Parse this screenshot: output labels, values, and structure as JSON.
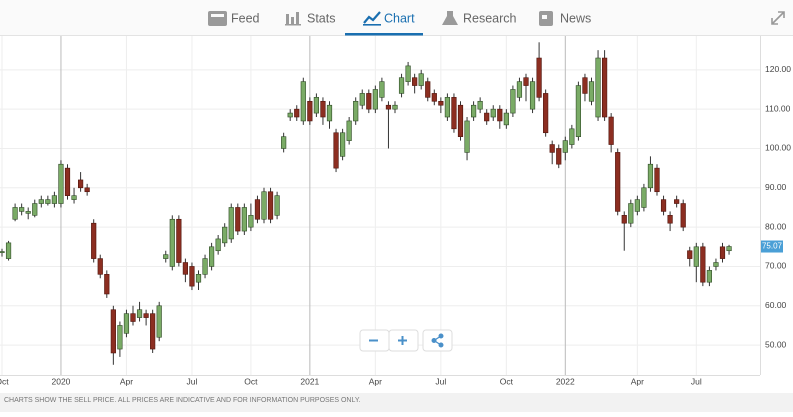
{
  "nav": {
    "tabs": [
      "Feed",
      "Stats",
      "Chart",
      "Research",
      "News"
    ],
    "active": 2
  },
  "chart_data": {
    "type": "candlestick",
    "note": "CHARTS SHOW THE SELL PRICE. ALL PRICES ARE INDICATIVE AND FOR INFORMATION PURPOSES ONLY.",
    "categories": [
      "Oct",
      null,
      null,
      null,
      null,
      null,
      null,
      null,
      null,
      "2020",
      null,
      null,
      null,
      null,
      null,
      null,
      null,
      null,
      null,
      "Apr",
      null,
      null,
      null,
      null,
      null,
      null,
      null,
      null,
      null,
      "Jul",
      null,
      null,
      null,
      null,
      null,
      null,
      null,
      null,
      "Oct",
      null,
      null,
      null,
      null,
      null,
      null,
      null,
      null,
      "2021",
      null,
      null,
      null,
      null,
      null,
      null,
      null,
      null,
      null,
      "Apr",
      null,
      null,
      null,
      null,
      null,
      null,
      null,
      null,
      null,
      "Jul",
      null,
      null,
      null,
      null,
      null,
      null,
      null,
      null,
      null,
      "Oct",
      null,
      null,
      null,
      null,
      null,
      null,
      null,
      null,
      "2022",
      null,
      null,
      null,
      null,
      null,
      null,
      null,
      null,
      null,
      null,
      "Apr",
      null,
      null,
      null,
      null,
      null,
      null,
      null,
      null,
      "Jul",
      null,
      null,
      null,
      null,
      null
    ],
    "open": [
      73.5,
      72,
      82,
      84,
      83.5,
      83,
      86,
      86,
      86,
      86,
      95,
      87,
      92,
      90,
      81,
      72,
      68,
      59,
      49,
      53,
      58,
      57,
      58,
      58,
      52,
      72,
      70,
      82,
      71,
      70,
      66,
      68,
      70,
      74,
      76,
      77,
      85,
      79,
      80,
      87,
      82,
      89,
      83,
      100,
      108,
      110,
      107,
      112,
      109,
      112,
      107,
      104,
      98,
      102,
      107,
      111,
      114,
      110,
      113,
      111,
      110,
      114,
      117,
      118,
      116,
      117,
      114,
      112,
      108,
      113,
      111,
      99,
      108,
      110,
      109,
      108,
      110,
      106,
      109,
      113,
      118,
      110,
      123,
      114,
      101,
      100,
      99,
      101,
      103,
      118,
      112,
      108,
      123,
      108,
      99,
      83,
      81,
      84,
      85,
      90,
      95,
      87,
      83,
      87,
      86,
      74,
      70,
      75,
      66,
      70,
      75,
      74
    ],
    "high": [
      74.5,
      76.5,
      86,
      86,
      85,
      87,
      88,
      88,
      89,
      97,
      96,
      90,
      94,
      91,
      82,
      73,
      69,
      60,
      56,
      59,
      60,
      61,
      59,
      59,
      61,
      74,
      83,
      83,
      72,
      71,
      69,
      73,
      76,
      78,
      81,
      86,
      86,
      86,
      86,
      88,
      90,
      90,
      89,
      104,
      110,
      111,
      118,
      113,
      114,
      113,
      112,
      105,
      105,
      108,
      113,
      115,
      115,
      116,
      118,
      112,
      112,
      119,
      122,
      119,
      120,
      118,
      115,
      113,
      114,
      114,
      112,
      108,
      112,
      113,
      110,
      111,
      111,
      110,
      116,
      118,
      119,
      118,
      127,
      115,
      102,
      101,
      103,
      106,
      117,
      119,
      118,
      125,
      125,
      109,
      100,
      84,
      87,
      88,
      91,
      98,
      96,
      88,
      84,
      88,
      87,
      75,
      76,
      76,
      70,
      72,
      76,
      75.5
    ],
    "low": [
      72.5,
      71.5,
      81.5,
      83,
      82,
      82.5,
      85,
      85.5,
      85,
      85,
      87,
      86,
      89,
      88,
      71,
      67,
      62,
      45,
      47,
      52,
      55,
      56,
      55,
      48,
      51,
      71,
      69,
      70,
      66,
      64,
      64,
      67,
      69,
      73,
      75,
      76,
      78,
      78,
      79,
      81,
      81,
      81,
      82,
      99,
      107,
      107,
      106,
      106,
      108,
      106,
      105,
      94,
      97,
      101,
      106,
      110,
      109,
      109,
      112,
      100,
      109,
      113,
      116,
      114,
      115,
      112,
      111,
      109,
      107,
      104,
      102,
      97,
      107,
      109,
      106,
      107,
      105,
      105,
      108,
      112,
      112,
      109,
      112,
      103,
      96,
      95,
      97,
      100,
      102,
      112,
      111,
      107,
      107,
      99,
      83,
      74,
      80,
      83,
      84,
      89,
      88,
      83,
      79,
      85,
      79,
      70,
      66,
      65,
      65,
      69,
      71,
      73
    ],
    "close": [
      73.8,
      76,
      85,
      85,
      84,
      86,
      87,
      87,
      88,
      96,
      88,
      88,
      90,
      89,
      72,
      68,
      63,
      48,
      55,
      58,
      56,
      59,
      57,
      49,
      60,
      73,
      82,
      71,
      68,
      65,
      68,
      72,
      75,
      77,
      80,
      85,
      79,
      85,
      83,
      82,
      89,
      82,
      88,
      103,
      109,
      108,
      117,
      107,
      113,
      108,
      111,
      95,
      104,
      107,
      112,
      114,
      110,
      115,
      117,
      110,
      111,
      118,
      121,
      116,
      119,
      113,
      112,
      111,
      113,
      105,
      103,
      107,
      111,
      112,
      107,
      110,
      107,
      109,
      115,
      117,
      116,
      117,
      113,
      104,
      99,
      96,
      102,
      105,
      116,
      114,
      117,
      123,
      108,
      101,
      84,
      81,
      86,
      87,
      90,
      96,
      89,
      84,
      81,
      86,
      80,
      72,
      75,
      66,
      69,
      71,
      72,
      75.07
    ],
    "up_color": "#7aab66",
    "down_color": "#8c2e21",
    "ylim": [
      42.4,
      128.6
    ],
    "yticks": [
      {
        "value": 50,
        "label": "50.00"
      },
      {
        "value": 60,
        "label": "60.00"
      },
      {
        "value": 70,
        "label": "70.00"
      },
      {
        "value": 80,
        "label": "80.00"
      },
      {
        "value": 90,
        "label": "90.00"
      },
      {
        "value": 100,
        "label": "100.00"
      },
      {
        "value": 110,
        "label": "110.00"
      },
      {
        "value": 120,
        "label": "120.00"
      }
    ],
    "grid": true
  }
}
